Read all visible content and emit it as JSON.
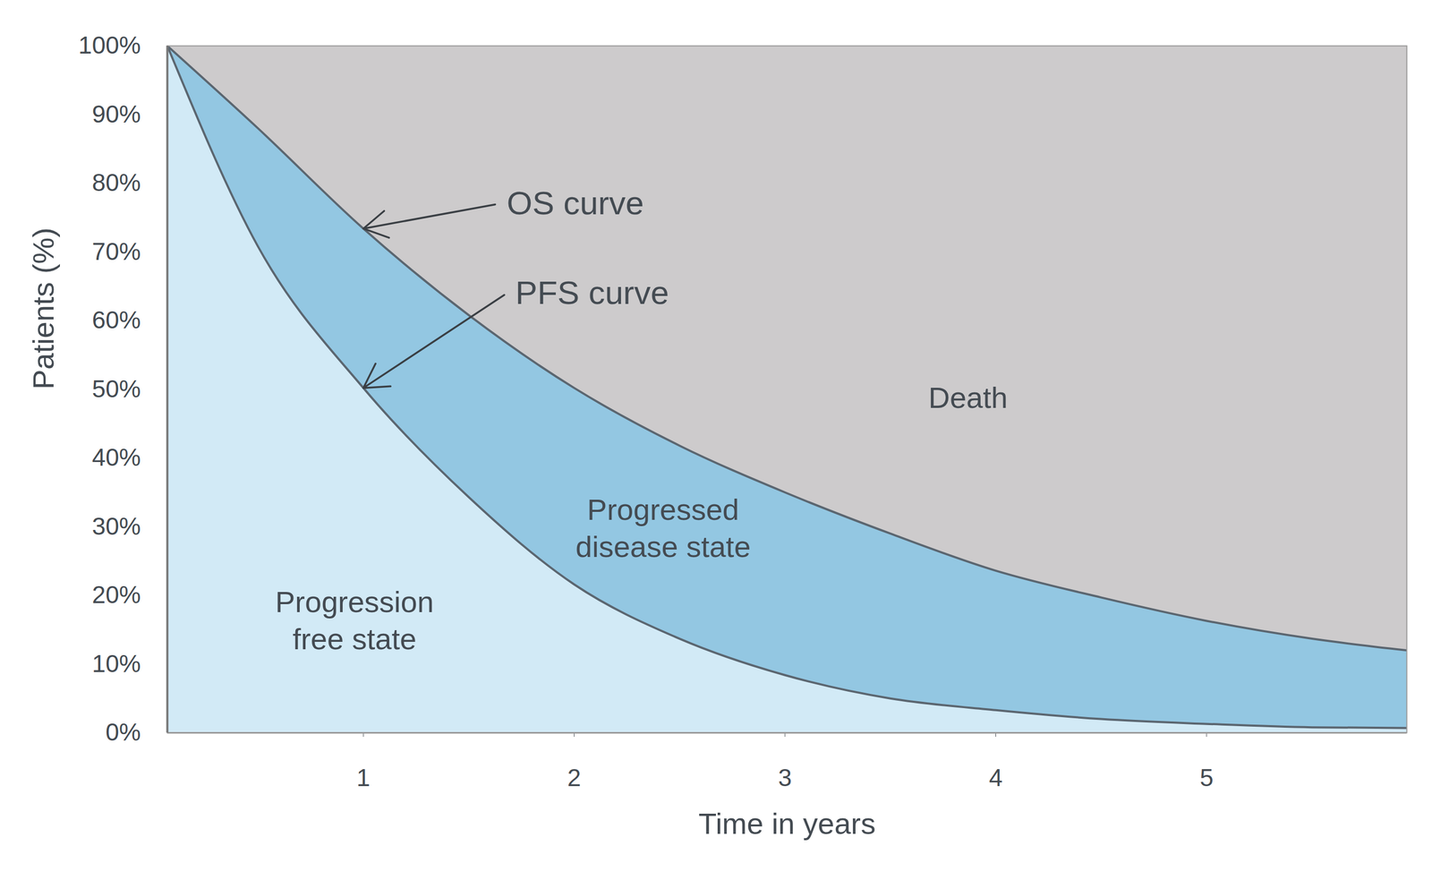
{
  "chart_data": {
    "type": "area",
    "x_label": "Time in years",
    "y_label": "Patients (%)",
    "x": [
      0.07,
      0.5,
      1,
      1.5,
      2,
      2.5,
      3,
      3.5,
      4,
      4.5,
      5,
      5.5,
      5.95
    ],
    "series": [
      {
        "name": "OS curve",
        "color": "#5b6670",
        "values": [
          100,
          88,
          73.4,
          60.8,
          50.2,
          41.8,
          35,
          29,
          23.6,
          19.7,
          16.3,
          13.7,
          12
        ]
      },
      {
        "name": "PFS curve",
        "color": "#5b6670",
        "values": [
          100,
          70.8,
          50.2,
          34.3,
          21.6,
          13.7,
          8.4,
          5,
          3.3,
          2,
          1.3,
          0.8,
          0.7
        ]
      }
    ],
    "areas": [
      {
        "name": "Progression free state",
        "color": "#d2eaf6"
      },
      {
        "name": "Progressed disease state",
        "color": "#93c7e2"
      },
      {
        "name": "Death",
        "color": "#cdcbcc"
      }
    ],
    "xlim": [
      0.07,
      5.95
    ],
    "xticks": [
      1,
      2,
      3,
      4,
      5
    ],
    "ylim": [
      0,
      100
    ],
    "yticks": [
      {
        "value": 0,
        "label": "0%"
      },
      {
        "value": 10,
        "label": "10%"
      },
      {
        "value": 20,
        "label": "20%"
      },
      {
        "value": 30,
        "label": "30%"
      },
      {
        "value": 40,
        "label": "40%"
      },
      {
        "value": 50,
        "label": "50%"
      },
      {
        "value": 60,
        "label": "60%"
      },
      {
        "value": 70,
        "label": "70%"
      },
      {
        "value": 80,
        "label": "80%"
      },
      {
        "value": 90,
        "label": "90%"
      },
      {
        "value": 100,
        "label": "100%"
      }
    ],
    "grid": false
  }
}
